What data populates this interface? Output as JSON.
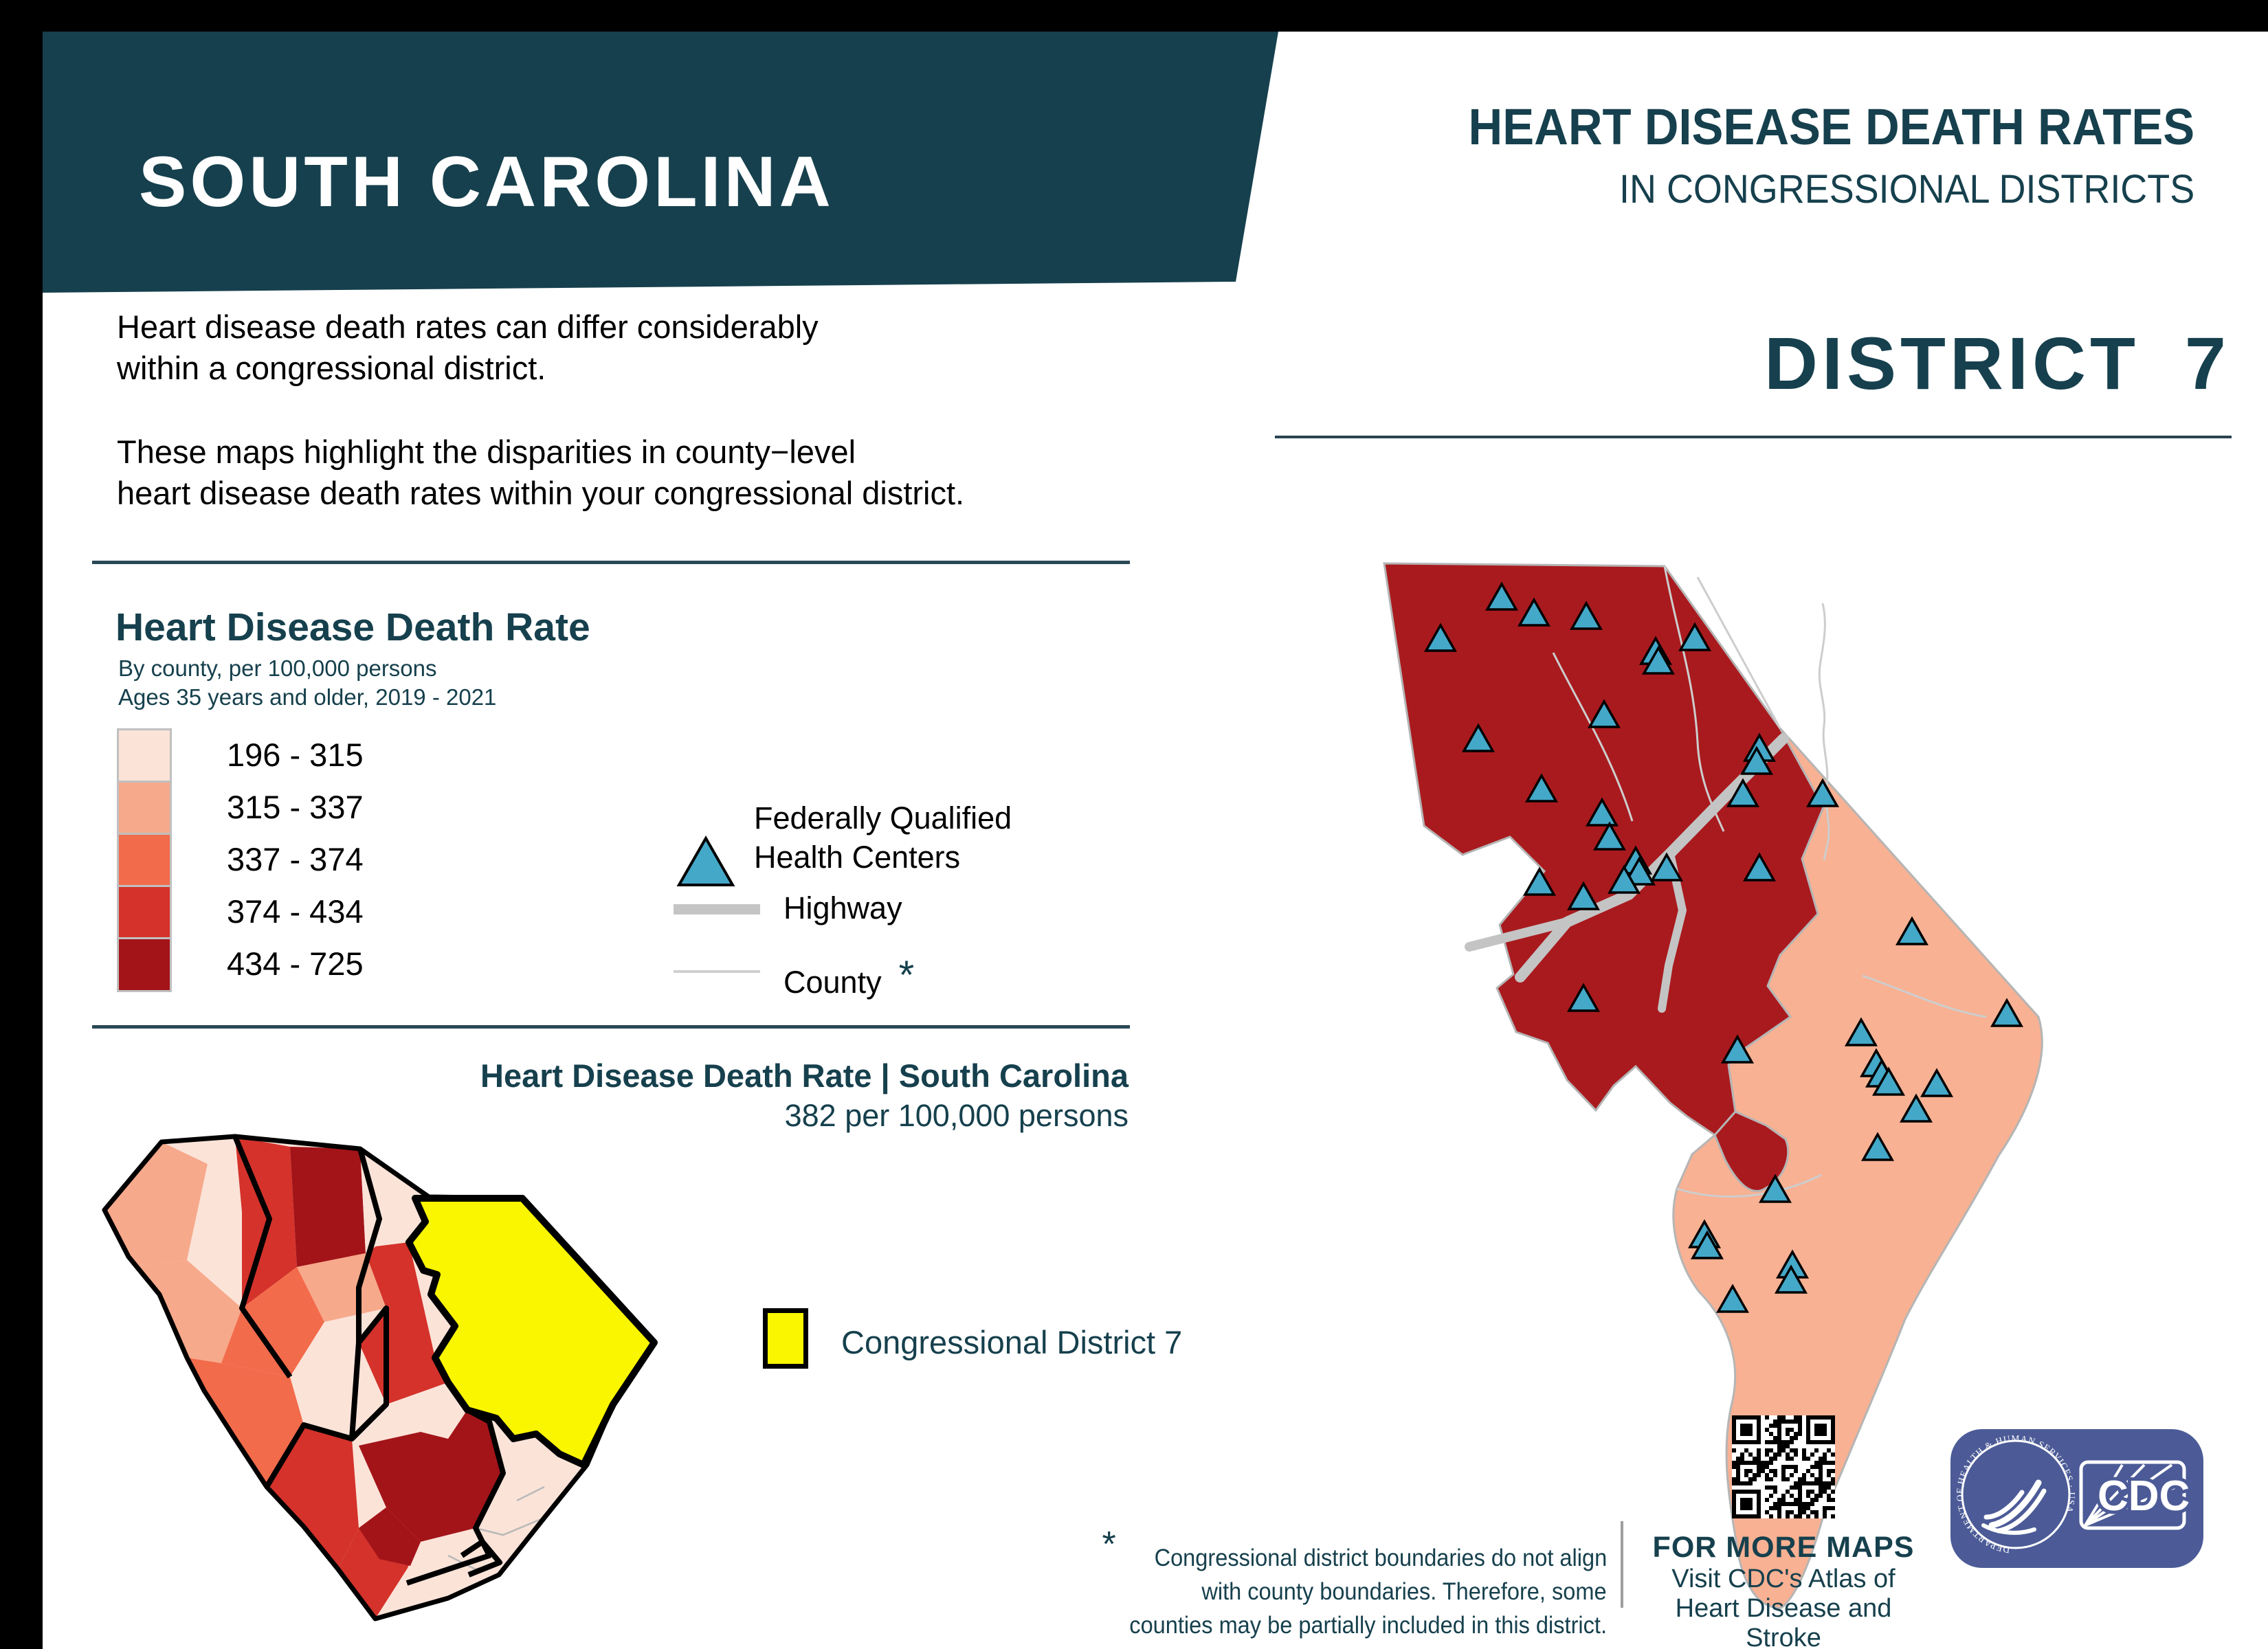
{
  "banner": {
    "state_name": "SOUTH CAROLINA",
    "background": "#16404d",
    "text_color": "#ffffff"
  },
  "header": {
    "title": "HEART DISEASE DEATH RATES",
    "subtitle": "IN CONGRESSIONAL DISTRICTS",
    "district_label": "DISTRICT  7",
    "text_color": "#16404d"
  },
  "intro": {
    "paragraph1_line1": "Heart disease death rates can differ considerably",
    "paragraph1_line2": "within a congressional district.",
    "paragraph2_line1": "These maps highlight the disparities in county−level",
    "paragraph2_line2": "heart disease death rates within your congressional district."
  },
  "legend": {
    "title": "Heart Disease Death Rate",
    "subtitle_line1": "By county, per 100,000 persons",
    "subtitle_line2": "Ages 35 years and older, 2019 - 2021",
    "classes": [
      {
        "range": "196 - 315",
        "color": "#fbe3d8"
      },
      {
        "range": "315 - 337",
        "color": "#f7a98b"
      },
      {
        "range": "337 - 374",
        "color": "#f26b4b"
      },
      {
        "range": "374 - 434",
        "color": "#d4322b"
      },
      {
        "range": "434 - 725",
        "color": "#a31419"
      }
    ],
    "fqhc_label_line1": "Federally Qualified",
    "fqhc_label_line2": "Health Centers",
    "fqhc_marker_color": "#44a8c9",
    "highway_label": "Highway",
    "highway_line_color": "#c5c5c5",
    "county_label": "County",
    "county_asterisk": "*",
    "county_line_color": "#cfcfcf"
  },
  "state_map_section": {
    "title": "Heart Disease Death Rate | South Carolina",
    "subtitle": "382 per 100,000 persons",
    "district_swatch_label": "Congressional District 7",
    "district_highlight_color": "#f9f600"
  },
  "district_map": {
    "dark_red_color": "#a91a1e",
    "salmon_color": "#f8b193",
    "marker_color": "#44a8c9"
  },
  "footnote": {
    "asterisk": "*",
    "line1": "Congressional district boundaries do not align",
    "line2": "with county boundaries. Therefore, some",
    "line3": "counties may be partially included in this district."
  },
  "more_maps": {
    "heading": "FOR MORE MAPS",
    "line1": "Visit CDC's Atlas of",
    "line2": "Heart Disease and Stroke"
  },
  "cdc_logo": {
    "acronym": "CDC",
    "seal_text": "DEPARTMENT OF HEALTH & HUMAN SERVICES · USA",
    "background": "#4c5b97"
  }
}
